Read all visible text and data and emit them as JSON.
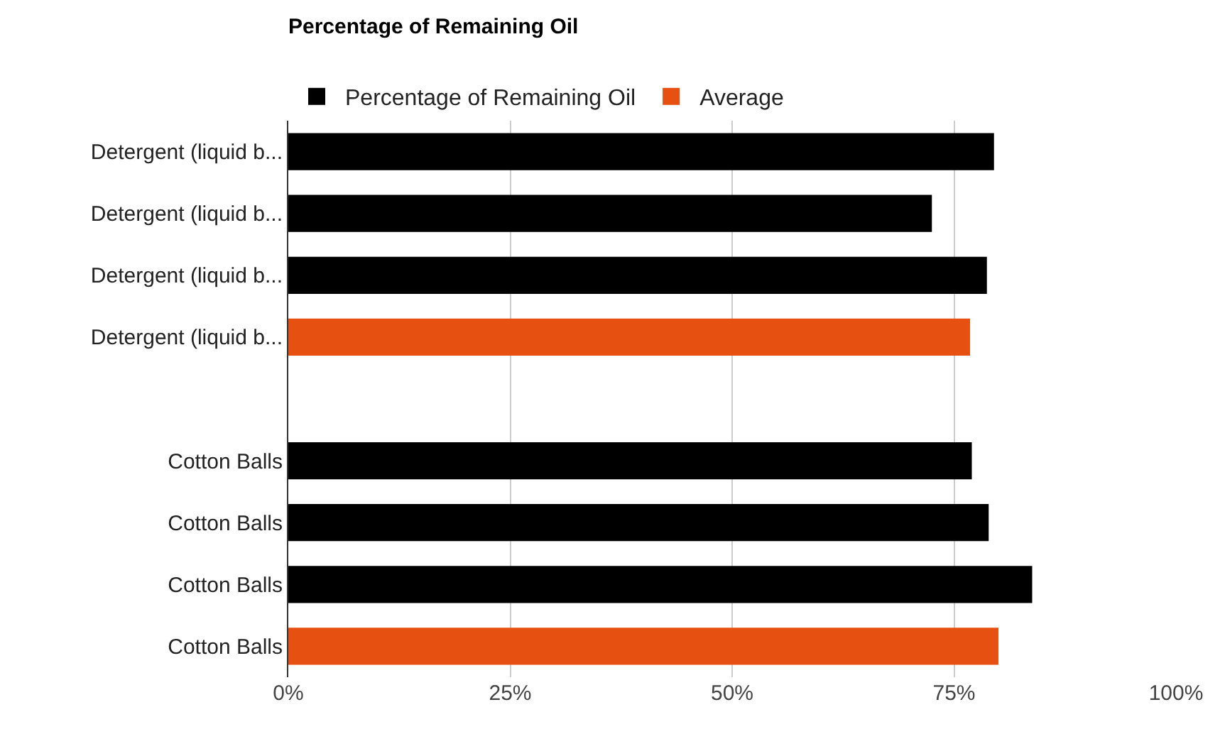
{
  "chart_data": {
    "type": "bar",
    "orientation": "horizontal",
    "title": "Percentage of Remaining Oil",
    "categories": [
      "Detergent (liquid b...",
      "Detergent (liquid b...",
      "Detergent (liquid b...",
      "Detergent (liquid b...",
      null,
      "Cotton Balls",
      "Cotton Balls",
      "Cotton Balls",
      "Cotton Balls"
    ],
    "series": [
      {
        "name": "Percentage of Remaining Oil",
        "color": "#000000",
        "values": [
          79.5,
          72.5,
          78.7,
          null,
          null,
          77.0,
          78.9,
          83.8,
          null
        ]
      },
      {
        "name": "Average",
        "color": "#e65010",
        "values": [
          null,
          null,
          null,
          76.8,
          null,
          null,
          null,
          null,
          80.0
        ]
      }
    ],
    "xlim": [
      0,
      100
    ],
    "xticks": [
      {
        "value": 0,
        "label": "0%"
      },
      {
        "value": 25,
        "label": "25%"
      },
      {
        "value": 50,
        "label": "50%"
      },
      {
        "value": 75,
        "label": "75%"
      },
      {
        "value": 100,
        "label": "100%"
      }
    ],
    "grid": "x",
    "legend": "top left"
  }
}
